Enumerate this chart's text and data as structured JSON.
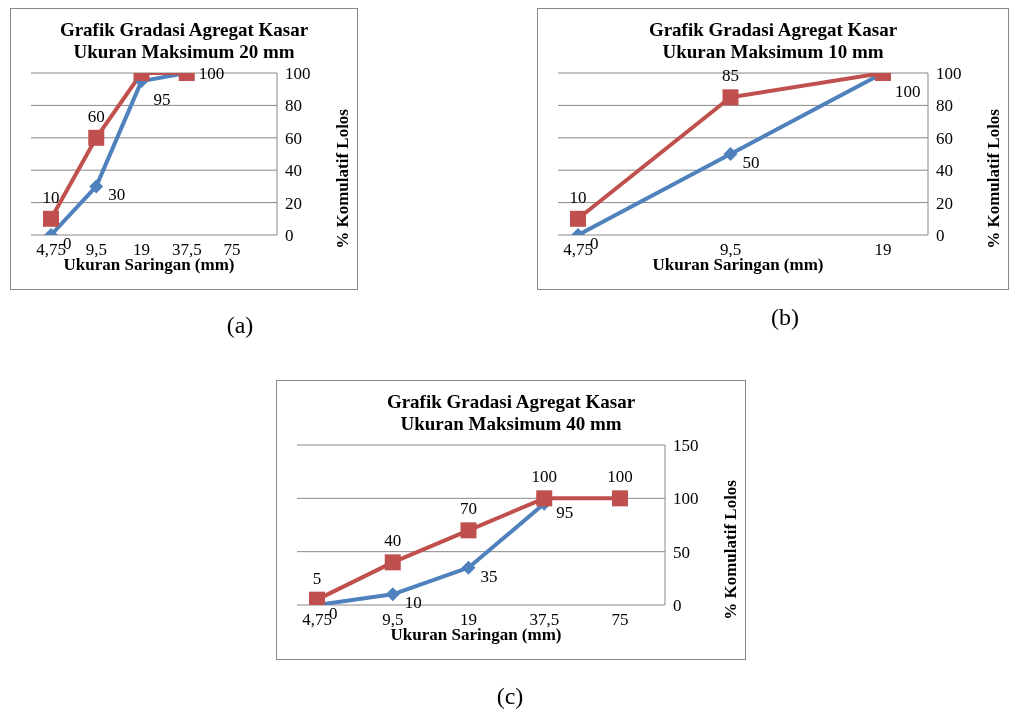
{
  "chart_data": [
    {
      "type": "line",
      "title": "Grafik Gradasi Agregat Kasar\nUkuran Maksimum 20 mm",
      "xlabel": "Ukuran Saringan (mm)",
      "ylabel": "% Komulatif Lolos",
      "categories": [
        "4,75",
        "9,5",
        "19",
        "37,5",
        "75"
      ],
      "ylim": [
        0,
        100
      ],
      "yticks": [
        0,
        20,
        40,
        60,
        80,
        100
      ],
      "grid": "y",
      "legend": false,
      "annotations": [
        "(a)"
      ],
      "series": [
        {
          "color": "#4f81bd",
          "marker": "diamond",
          "values": [
            0,
            30,
            95,
            100,
            null
          ],
          "value_labels": [
            "0",
            "30",
            "95",
            null,
            null
          ]
        },
        {
          "color": "#c0504d",
          "marker": "square",
          "values": [
            10,
            60,
            100,
            100,
            null
          ],
          "value_labels": [
            "10",
            "60",
            null,
            "100",
            null
          ]
        }
      ]
    },
    {
      "type": "line",
      "title": "Grafik Gradasi Agregat Kasar\nUkuran Maksimum 10 mm",
      "xlabel": "Ukuran Saringan (mm)",
      "ylabel": "% Komulatif Lolos",
      "categories": [
        "4,75",
        "9,5",
        "19"
      ],
      "ylim": [
        0,
        100
      ],
      "yticks": [
        0,
        20,
        40,
        60,
        80,
        100
      ],
      "grid": "y",
      "legend": false,
      "annotations": [
        "(b)"
      ],
      "series": [
        {
          "color": "#4f81bd",
          "marker": "diamond",
          "values": [
            0,
            50,
            100
          ],
          "value_labels": [
            "0",
            "50",
            "100"
          ]
        },
        {
          "color": "#c0504d",
          "marker": "square",
          "values": [
            10,
            85,
            100
          ],
          "value_labels": [
            "10",
            "85",
            null
          ]
        }
      ]
    },
    {
      "type": "line",
      "title": "Grafik Gradasi Agregat Kasar\nUkuran Maksimum 40 mm",
      "xlabel": "Ukuran Saringan (mm)",
      "ylabel": "% Komulatif Lolos",
      "categories": [
        "4,75",
        "9,5",
        "19",
        "37,5",
        "75"
      ],
      "ylim": [
        0,
        150
      ],
      "yticks": [
        0,
        50,
        100,
        150
      ],
      "grid": "y",
      "legend": false,
      "annotations": [
        "(c)"
      ],
      "series": [
        {
          "color": "#4f81bd",
          "marker": "diamond",
          "values": [
            0,
            10,
            35,
            95,
            null
          ],
          "value_labels": [
            "0",
            "10",
            "35",
            "95",
            null
          ]
        },
        {
          "color": "#c0504d",
          "marker": "square",
          "values": [
            5,
            40,
            70,
            100,
            100
          ],
          "value_labels": [
            "5",
            "40",
            "70",
            "100",
            "100"
          ]
        }
      ]
    }
  ]
}
